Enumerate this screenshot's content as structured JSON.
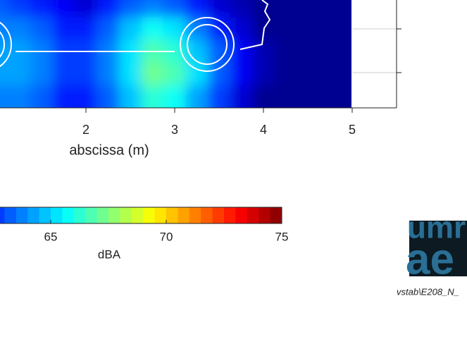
{
  "chart_data": {
    "type": "heatmap",
    "xlabel": "abscissa (m)",
    "xlim": [
      1,
      5.5
    ],
    "xticks": [
      2,
      3,
      4,
      5
    ],
    "x": [
      1,
      1.25,
      1.5,
      1.75,
      2,
      2.25,
      2.5,
      2.75,
      3,
      3.25,
      3.5,
      3.75,
      4,
      4.25,
      4.5,
      4.75,
      5
    ],
    "z": [
      [
        62,
        61.5,
        61,
        61,
        60.5,
        61,
        61.5,
        61.5,
        61.5,
        61,
        60.5,
        60,
        60,
        60,
        60,
        60,
        60
      ],
      [
        63,
        62.5,
        62,
        61.5,
        61,
        62,
        63,
        63.5,
        63,
        62,
        61,
        60.5,
        60,
        60,
        60,
        60,
        60
      ],
      [
        63.5,
        63.5,
        63,
        62,
        62,
        63,
        64.5,
        65.5,
        65,
        63.5,
        62,
        61,
        60,
        60,
        60,
        60,
        60
      ],
      [
        64,
        64,
        63.5,
        62.5,
        62.5,
        63.5,
        65,
        66.5,
        66,
        64.5,
        63,
        61.5,
        60.5,
        60,
        60,
        60,
        60
      ],
      [
        64,
        64,
        63.5,
        62.5,
        62.5,
        63.5,
        65,
        67,
        66.5,
        65,
        63,
        61.5,
        60.5,
        60,
        60,
        60,
        60
      ],
      [
        63.5,
        63.5,
        63,
        62,
        62,
        63,
        64.5,
        66,
        65.5,
        64,
        62.5,
        61,
        60,
        60,
        60,
        60,
        60
      ]
    ],
    "colormap": "jet",
    "clim": [
      60,
      75
    ],
    "level_step": 0.5,
    "colorbar_ticks": [
      65,
      70,
      75
    ],
    "colorbar_label": "dBA"
  },
  "logo": {
    "line1": "umr",
    "line2": "ae"
  },
  "footer": "vstab\\E208_N_"
}
